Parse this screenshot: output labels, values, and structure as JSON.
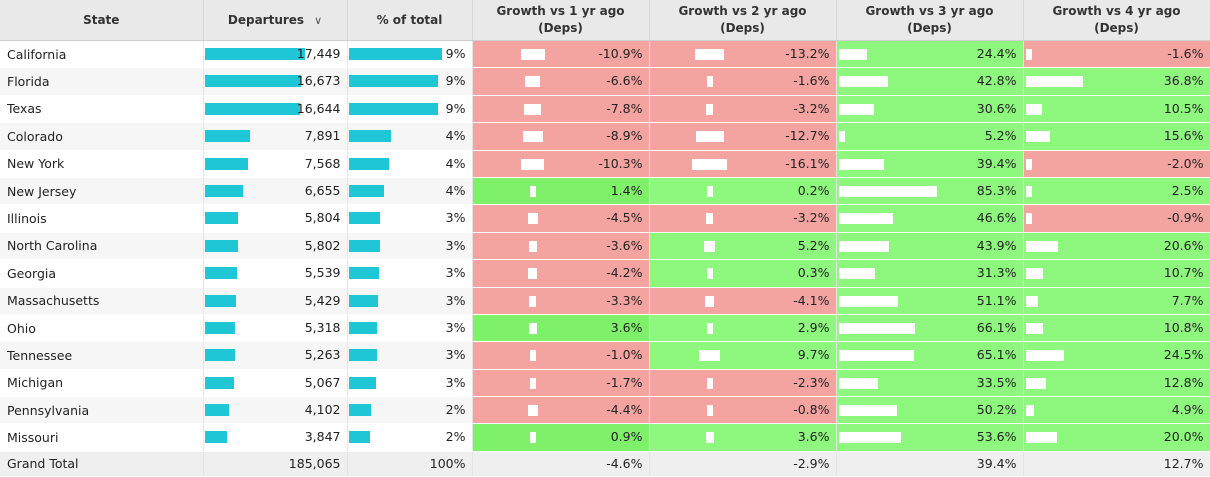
{
  "headers": {
    "state": "State",
    "departures": "Departures",
    "pct_total": "% of total",
    "g1_line1": "Growth vs 1 yr ago",
    "g2_line1": "Growth vs 2 yr ago",
    "g3_line1": "Growth vs 3 yr ago",
    "g4_line1": "Growth vs 4 yr ago",
    "g_line2": "(Deps)"
  },
  "colors": {
    "bar": "#1fc6d6",
    "negative": "#f4a4a0",
    "positive": "#8ef77e",
    "header_bg": "#e9e9e9"
  },
  "rows": [
    {
      "state": "California",
      "departures": "17,449",
      "dep_value": 17449,
      "pct": "9%",
      "pct_value": 9,
      "g1": "-10.9%",
      "g1v": -10.9,
      "g2": "-13.2%",
      "g2v": -13.2,
      "g3": "24.4%",
      "g3v": 24.4,
      "g4": "-1.6%",
      "g4v": -1.6
    },
    {
      "state": "Florida",
      "departures": "16,673",
      "dep_value": 16673,
      "pct": "9%",
      "pct_value": 9,
      "g1": "-6.6%",
      "g1v": -6.6,
      "g2": "-1.6%",
      "g2v": -1.6,
      "g3": "42.8%",
      "g3v": 42.8,
      "g4": "36.8%",
      "g4v": 36.8
    },
    {
      "state": "Texas",
      "departures": "16,644",
      "dep_value": 16644,
      "pct": "9%",
      "pct_value": 9,
      "g1": "-7.8%",
      "g1v": -7.8,
      "g2": "-3.2%",
      "g2v": -3.2,
      "g3": "30.6%",
      "g3v": 30.6,
      "g4": "10.5%",
      "g4v": 10.5
    },
    {
      "state": "Colorado",
      "departures": "7,891",
      "dep_value": 7891,
      "pct": "4%",
      "pct_value": 4,
      "g1": "-8.9%",
      "g1v": -8.9,
      "g2": "-12.7%",
      "g2v": -12.7,
      "g3": "5.2%",
      "g3v": 5.2,
      "g4": "15.6%",
      "g4v": 15.6
    },
    {
      "state": "New York",
      "departures": "7,568",
      "dep_value": 7568,
      "pct": "4%",
      "pct_value": 4,
      "g1": "-10.3%",
      "g1v": -10.3,
      "g2": "-16.1%",
      "g2v": -16.1,
      "g3": "39.4%",
      "g3v": 39.4,
      "g4": "-2.0%",
      "g4v": -2.0
    },
    {
      "state": "New Jersey",
      "departures": "6,655",
      "dep_value": 6655,
      "pct": "4%",
      "pct_value": 4,
      "g1": "1.4%",
      "g1v": 1.4,
      "g2": "0.2%",
      "g2v": 0.2,
      "g3": "85.3%",
      "g3v": 85.3,
      "g4": "2.5%",
      "g4v": 2.5
    },
    {
      "state": "Illinois",
      "departures": "5,804",
      "dep_value": 5804,
      "pct": "3%",
      "pct_value": 3,
      "g1": "-4.5%",
      "g1v": -4.5,
      "g2": "-3.2%",
      "g2v": -3.2,
      "g3": "46.6%",
      "g3v": 46.6,
      "g4": "-0.9%",
      "g4v": -0.9
    },
    {
      "state": "North Carolina",
      "departures": "5,802",
      "dep_value": 5802,
      "pct": "3%",
      "pct_value": 3,
      "g1": "-3.6%",
      "g1v": -3.6,
      "g2": "5.2%",
      "g2v": 5.2,
      "g3": "43.9%",
      "g3v": 43.9,
      "g4": "20.6%",
      "g4v": 20.6
    },
    {
      "state": "Georgia",
      "departures": "5,539",
      "dep_value": 5539,
      "pct": "3%",
      "pct_value": 3,
      "g1": "-4.2%",
      "g1v": -4.2,
      "g2": "0.3%",
      "g2v": 0.3,
      "g3": "31.3%",
      "g3v": 31.3,
      "g4": "10.7%",
      "g4v": 10.7
    },
    {
      "state": "Massachusetts",
      "departures": "5,429",
      "dep_value": 5429,
      "pct": "3%",
      "pct_value": 3,
      "g1": "-3.3%",
      "g1v": -3.3,
      "g2": "-4.1%",
      "g2v": -4.1,
      "g3": "51.1%",
      "g3v": 51.1,
      "g4": "7.7%",
      "g4v": 7.7
    },
    {
      "state": "Ohio",
      "departures": "5,318",
      "dep_value": 5318,
      "pct": "3%",
      "pct_value": 3,
      "g1": "3.6%",
      "g1v": 3.6,
      "g2": "2.9%",
      "g2v": 2.9,
      "g3": "66.1%",
      "g3v": 66.1,
      "g4": "10.8%",
      "g4v": 10.8
    },
    {
      "state": "Tennessee",
      "departures": "5,263",
      "dep_value": 5263,
      "pct": "3%",
      "pct_value": 3,
      "g1": "-1.0%",
      "g1v": -1.0,
      "g2": "9.7%",
      "g2v": 9.7,
      "g3": "65.1%",
      "g3v": 65.1,
      "g4": "24.5%",
      "g4v": 24.5
    },
    {
      "state": "Michigan",
      "departures": "5,067",
      "dep_value": 5067,
      "pct": "3%",
      "pct_value": 3,
      "g1": "-1.7%",
      "g1v": -1.7,
      "g2": "-2.3%",
      "g2v": -2.3,
      "g3": "33.5%",
      "g3v": 33.5,
      "g4": "12.8%",
      "g4v": 12.8
    },
    {
      "state": "Pennsylvania",
      "departures": "4,102",
      "dep_value": 4102,
      "pct": "2%",
      "pct_value": 2,
      "g1": "-4.4%",
      "g1v": -4.4,
      "g2": "-0.8%",
      "g2v": -0.8,
      "g3": "50.2%",
      "g3v": 50.2,
      "g4": "4.9%",
      "g4v": 4.9
    },
    {
      "state": "Missouri",
      "departures": "3,847",
      "dep_value": 3847,
      "pct": "2%",
      "pct_value": 2,
      "g1": "0.9%",
      "g1v": 0.9,
      "g2": "3.6%",
      "g2v": 3.6,
      "g3": "53.6%",
      "g3v": 53.6,
      "g4": "20.0%",
      "g4v": 20.0
    }
  ],
  "total": {
    "label": "Grand Total",
    "departures": "185,065",
    "pct": "100%",
    "g1": "-4.6%",
    "g2": "-2.9%",
    "g3": "39.4%",
    "g4": "12.7%"
  }
}
